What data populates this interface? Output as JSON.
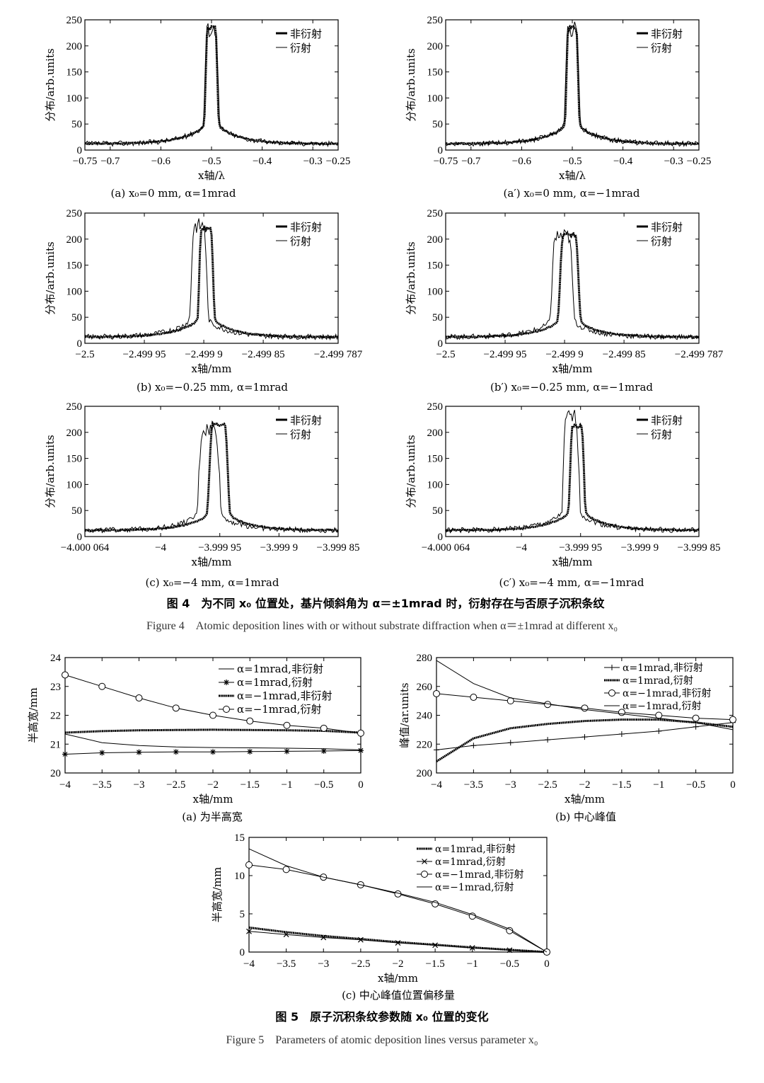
{
  "figure4": {
    "caption_cn": "图 4　为不同 x₀ 位置处，基片倾斜角为 α＝±1mrad 时，衍射存在与否原子沉积条纹",
    "caption_en": "Figure 4　Atomic deposition lines with or without substrate diffraction when α＝±1mrad at different x₀",
    "legend": [
      "非衍射",
      "衍射"
    ],
    "ylabel": "分布/arb.units",
    "panels": [
      {
        "id": "a",
        "subcaption": "(a) x₀=0 mm, α=1mrad",
        "xlabel": "x轴/λ",
        "xticks": [
          "−0.75",
          "−0.7",
          "−0.6",
          "−0.5",
          "−0.4",
          "−0.3",
          "−0.25"
        ],
        "xtick_values": [
          -0.75,
          -0.7,
          -0.6,
          -0.5,
          -0.4,
          -0.3,
          -0.25
        ],
        "xlim": [
          -0.75,
          -0.25
        ],
        "ylim": [
          0,
          250
        ],
        "yticks": [
          "0",
          "50",
          "100",
          "150",
          "200",
          "250"
        ],
        "center": -0.5,
        "peak": 235,
        "width_nd": 0.012,
        "shift_d": 0.0,
        "peak_d": 232
      },
      {
        "id": "a2",
        "subcaption": "(a′) x₀=0 mm, α=−1mrad",
        "xlabel": "x轴/λ",
        "xticks": [
          "−0.75",
          "−0.7",
          "−0.6",
          "−0.5",
          "−0.4",
          "−0.3",
          "−0.25"
        ],
        "xtick_values": [
          -0.75,
          -0.7,
          -0.6,
          -0.5,
          -0.4,
          -0.3,
          -0.25
        ],
        "xlim": [
          -0.75,
          -0.25
        ],
        "ylim": [
          0,
          250
        ],
        "yticks": [
          "0",
          "50",
          "100",
          "150",
          "200",
          "250"
        ],
        "center": -0.5,
        "peak": 235,
        "width_nd": 0.012,
        "shift_d": 0.0,
        "peak_d": 232
      },
      {
        "id": "b",
        "subcaption": "(b) x₀=−0.25 mm, α=1mrad",
        "xlabel": "x轴/mm",
        "xticks": [
          "−2.5",
          "−2.499 95",
          "−2.499 9",
          "−2.499 85",
          "−2.499 787"
        ],
        "xtick_values": [
          -2.5,
          -2.49995,
          -2.4999,
          -2.49985,
          -2.499787
        ],
        "xlim": [
          -2.5,
          -2.499787
        ],
        "ylim": [
          0,
          250
        ],
        "yticks": [
          "0",
          "50",
          "100",
          "150",
          "200",
          "250"
        ],
        "center": -2.499898,
        "peak": 220,
        "width_nd": 6e-06,
        "shift_d": -6e-06,
        "peak_d": 225
      },
      {
        "id": "b2",
        "subcaption": "(b′) x₀=−0.25 mm, α=−1mrad",
        "xlabel": "x轴/mm",
        "xticks": [
          "−2.5",
          "−2.499 95",
          "−2.499 9",
          "−2.499 85",
          "−2.499 787"
        ],
        "xtick_values": [
          -2.5,
          -2.49995,
          -2.4999,
          -2.49985,
          -2.499787
        ],
        "xlim": [
          -2.5,
          -2.499787
        ],
        "ylim": [
          0,
          250
        ],
        "yticks": [
          "0",
          "50",
          "100",
          "150",
          "200",
          "250"
        ],
        "center": -2.499896,
        "peak": 208,
        "width_nd": 8e-06,
        "shift_d": -6e-06,
        "peak_d": 205
      },
      {
        "id": "c",
        "subcaption": "(c) x₀=−4 mm, α=1mrad",
        "xlabel": "x轴/mm",
        "xticks": [
          "−4.000 064",
          "−4",
          "−3.999 95",
          "−3.999 9",
          "−3.999 85"
        ],
        "xtick_values": [
          -4.000064,
          -4.0,
          -3.99995,
          -3.9999,
          -3.99985
        ],
        "xlim": [
          -4.000064,
          -3.99985
        ],
        "ylim": [
          0,
          250
        ],
        "yticks": [
          "0",
          "50",
          "100",
          "150",
          "200",
          "250"
        ],
        "center": -3.999951,
        "peak": 215,
        "width_nd": 8e-06,
        "shift_d": -8e-06,
        "peak_d": 205
      },
      {
        "id": "c2",
        "subcaption": "(c′) x₀=−4 mm, α=−1mrad",
        "xlabel": "x轴/mm",
        "xticks": [
          "−4.000 064",
          "−4",
          "−3.999 95",
          "−3.999 9",
          "−3.999 85"
        ],
        "xtick_values": [
          -4.000064,
          -4.0,
          -3.99995,
          -3.9999,
          -3.99985
        ],
        "xlim": [
          -4.000064,
          -3.99985
        ],
        "ylim": [
          0,
          250
        ],
        "yticks": [
          "0",
          "50",
          "100",
          "150",
          "200",
          "250"
        ],
        "center": -3.999953,
        "peak": 212,
        "width_nd": 6e-06,
        "shift_d": -5e-06,
        "peak_d": 228
      }
    ]
  },
  "figure5": {
    "caption_cn": "图 5　原子沉积条纹参数随 x₀ 位置的变化",
    "caption_en": "Figure 5　Parameters of atomic deposition lines versus parameter x₀",
    "xlabel": "x轴/mm",
    "xticks": [
      "−4",
      "−3.5",
      "−3",
      "−2.5",
      "−2",
      "−1.5",
      "−1",
      "−0.5",
      "0"
    ]
  },
  "chart_data": [
    {
      "type": "line",
      "panel": "5a",
      "subcaption": "(a) 为半高宽",
      "ylabel": "半高宽/mm",
      "xlabel": "x轴/mm",
      "ylim": [
        20,
        24
      ],
      "yticks": [
        "20",
        "21",
        "22",
        "23",
        "24"
      ],
      "xlim": [
        -4,
        0
      ],
      "x": [
        -4,
        -3.5,
        -3,
        -2.5,
        -2,
        -1.5,
        -1,
        -0.5,
        0
      ],
      "series": [
        {
          "name": "α=1mrad,非衍射",
          "style": "thin",
          "values": [
            21.35,
            21.05,
            20.95,
            20.9,
            20.88,
            20.87,
            20.86,
            20.84,
            20.8
          ]
        },
        {
          "name": "α=1mrad,衍射",
          "style": "star",
          "values": [
            20.65,
            20.7,
            20.72,
            20.73,
            20.73,
            20.74,
            20.75,
            20.76,
            20.78
          ]
        },
        {
          "name": "α=−1mrad,非衍射",
          "style": "thick",
          "values": [
            21.4,
            21.45,
            21.48,
            21.49,
            21.5,
            21.49,
            21.48,
            21.46,
            21.4
          ]
        },
        {
          "name": "α=−1mrad,衍射",
          "style": "circle",
          "values": [
            23.4,
            23.0,
            22.6,
            22.25,
            22.0,
            21.8,
            21.65,
            21.55,
            21.38
          ]
        }
      ]
    },
    {
      "type": "line",
      "panel": "5b",
      "subcaption": "(b) 中心峰值",
      "ylabel": "峰值/ar.units",
      "xlabel": "x轴/mm",
      "ylim": [
        200,
        280
      ],
      "yticks": [
        "200",
        "220",
        "240",
        "260",
        "280"
      ],
      "xlim": [
        -4,
        0
      ],
      "x": [
        -4,
        -3.5,
        -3,
        -2.5,
        -2,
        -1.5,
        -1,
        -0.5,
        0
      ],
      "series": [
        {
          "name": "α=1mrad,非衍射",
          "style": "plus",
          "values": [
            216,
            219,
            221,
            223,
            225,
            227,
            229,
            232,
            235
          ]
        },
        {
          "name": "α=1mrad,衍射",
          "style": "thick",
          "values": [
            208,
            224,
            231,
            234,
            236,
            237,
            237,
            235,
            232
          ]
        },
        {
          "name": "α=−1mrad,非衍射",
          "style": "circle",
          "values": [
            255,
            252.5,
            250,
            247.5,
            245,
            242,
            240,
            238,
            237
          ]
        },
        {
          "name": "α=−1mrad,衍射",
          "style": "thin",
          "values": [
            278,
            262,
            252,
            248,
            244,
            241,
            238,
            235,
            230
          ]
        }
      ]
    },
    {
      "type": "line",
      "panel": "5c",
      "subcaption": "(c) 中心峰值位置偏移量",
      "ylabel": "半高宽/mm",
      "xlabel": "x轴/mm",
      "ylim": [
        0,
        15
      ],
      "yticks": [
        "0",
        "5",
        "10",
        "15"
      ],
      "xlim": [
        -4,
        0
      ],
      "x": [
        -4,
        -3.5,
        -3,
        -2.5,
        -2,
        -1.5,
        -1,
        -0.5,
        0
      ],
      "series": [
        {
          "name": "α=1mrad,非衍射",
          "style": "thick",
          "values": [
            3.2,
            2.6,
            2.1,
            1.7,
            1.3,
            0.95,
            0.6,
            0.3,
            0
          ]
        },
        {
          "name": "α=1mrad,衍射",
          "style": "cross",
          "values": [
            2.7,
            2.3,
            1.9,
            1.6,
            1.2,
            0.9,
            0.55,
            0.25,
            0
          ]
        },
        {
          "name": "α=−1mrad,非衍射",
          "style": "circle",
          "values": [
            11.4,
            10.8,
            9.8,
            8.8,
            7.6,
            6.3,
            4.7,
            2.8,
            0
          ]
        },
        {
          "name": "α=−1mrad,衍射",
          "style": "thin",
          "values": [
            13.5,
            11.3,
            9.8,
            8.8,
            7.7,
            6.5,
            4.9,
            3.0,
            0
          ]
        }
      ]
    }
  ]
}
